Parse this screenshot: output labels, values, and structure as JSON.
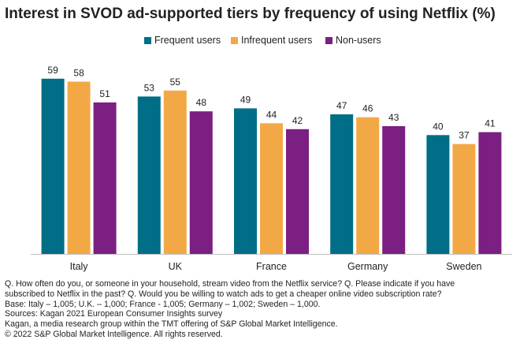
{
  "chart_data": {
    "type": "bar",
    "title": "Interest in SVOD ad-supported tiers by frequency of using Netflix (%)",
    "categories": [
      "Italy",
      "UK",
      "France",
      "Germany",
      "Sweden"
    ],
    "series": [
      {
        "name": "Frequent users",
        "values": [
          59,
          53,
          49,
          47,
          40
        ],
        "color": "#006e87"
      },
      {
        "name": "Infrequent users",
        "values": [
          58,
          55,
          44,
          46,
          37
        ],
        "color": "#f2a945"
      },
      {
        "name": "Non-users",
        "values": [
          51,
          48,
          42,
          43,
          41
        ],
        "color": "#7b1f82"
      }
    ],
    "ylim": [
      0,
      60
    ],
    "grid": false,
    "legend": "top-center",
    "data_labels": true
  },
  "notes": [
    "Q. How often do you, or someone in your household, stream video from the Netflix service?  Q. Please indicate if you have",
    "subscribed to Netflix in the past?  Q. Would you be willing to watch ads to get a cheaper online video subscription rate?",
    "Base: Italy – 1,005; U.K. – 1,000; France - 1,005; Germany – 1,002; Sweden – 1,000.",
    "Sources: Kagan 2021 European Consumer Insights survey",
    "Kagan, a media research group within the TMT offering of S&P Global Market Intelligence.",
    "© 2022 S&P Global Market Intelligence.  All rights reserved."
  ]
}
